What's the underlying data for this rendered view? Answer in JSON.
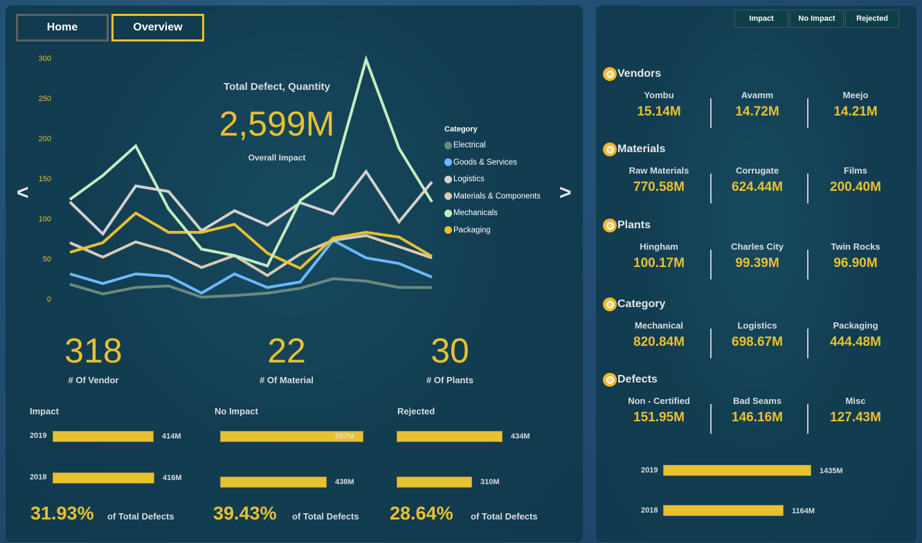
{
  "nav": {
    "home": "Home",
    "overview": "Overview"
  },
  "kpi": {
    "title": "Total Defect, Quantity",
    "value": "2,599M",
    "subtitle": "Overall Impact"
  },
  "chart_data": {
    "type": "line",
    "title": "Total Defect, Quantity by Category",
    "xlabel": "",
    "ylabel": "",
    "yticks": [
      "300",
      "250",
      "200",
      "150",
      "100",
      "50",
      "0"
    ],
    "ylim": [
      0,
      300
    ],
    "grid": false,
    "legend": "right",
    "legend_title": "Category",
    "x": [
      1,
      2,
      3,
      4,
      5,
      6,
      7,
      8,
      9,
      10,
      11,
      12
    ],
    "series": [
      {
        "name": "Electrical",
        "color": "#6b8a7e",
        "values": [
          19,
          7,
          15,
          17,
          3,
          5,
          8,
          14,
          26,
          23,
          15,
          15
        ]
      },
      {
        "name": "Goods & Services",
        "color": "#6db8ff",
        "values": [
          32,
          20,
          32,
          29,
          8,
          32,
          15,
          22,
          74,
          52,
          45,
          28
        ]
      },
      {
        "name": "Logistics",
        "color": "#d4d0d0",
        "values": [
          122,
          82,
          142,
          135,
          86,
          111,
          93,
          121,
          107,
          160,
          97,
          147
        ]
      },
      {
        "name": "Materials & Components",
        "color": "#d9cbb3",
        "values": [
          71,
          53,
          72,
          60,
          40,
          55,
          30,
          57,
          74,
          80,
          66,
          52
        ]
      },
      {
        "name": "Mechanicals",
        "color": "#c4ecbf",
        "values": [
          125,
          155,
          192,
          113,
          63,
          55,
          42,
          124,
          153,
          300,
          189,
          122
        ]
      },
      {
        "name": "Packaging",
        "color": "#e8c130",
        "values": [
          59,
          71,
          108,
          84,
          84,
          94,
          58,
          39,
          77,
          84,
          78,
          54
        ]
      }
    ]
  },
  "arrows": {
    "prev": "<",
    "next": ">"
  },
  "counts": [
    {
      "value": "318",
      "label": "# Of Vendor"
    },
    {
      "value": "22",
      "label": "# Of Material"
    },
    {
      "value": "30",
      "label": "# Of Plants"
    }
  ],
  "bar_groups": [
    {
      "title": "Impact",
      "bars": [
        {
          "year": "2019",
          "label": "414M",
          "value": 414
        },
        {
          "year": "2018",
          "label": "416M",
          "value": 416
        }
      ],
      "pct": "31.93%",
      "pct_label": "of Total Defects"
    },
    {
      "title": "No Impact",
      "bars": [
        {
          "year": "",
          "label": "587M",
          "value": 587
        },
        {
          "year": "",
          "label": "438M",
          "value": 438
        }
      ],
      "pct": "39.43%",
      "pct_label": "of Total Defects"
    },
    {
      "title": "Rejected",
      "bars": [
        {
          "year": "",
          "label": "434M",
          "value": 434
        },
        {
          "year": "",
          "label": "310M",
          "value": 310
        }
      ],
      "pct": "28.64%",
      "pct_label": "of Total Defects"
    }
  ],
  "filters": [
    "Impact",
    "No Impact",
    "Rejected"
  ],
  "sections": [
    {
      "title": "Vendors",
      "items": [
        {
          "name": "Yombu",
          "value": "15.14M"
        },
        {
          "name": "Avamm",
          "value": "14.72M"
        },
        {
          "name": "Meejo",
          "value": "14.21M"
        }
      ]
    },
    {
      "title": "Materials",
      "items": [
        {
          "name": "Raw Materials",
          "value": "770.58M"
        },
        {
          "name": "Corrugate",
          "value": "624.44M"
        },
        {
          "name": "Films",
          "value": "200.40M"
        }
      ]
    },
    {
      "title": "Plants",
      "items": [
        {
          "name": "Hingham",
          "value": "100.17M"
        },
        {
          "name": "Charles City",
          "value": "99.39M"
        },
        {
          "name": "Twin Rocks",
          "value": "96.90M"
        }
      ]
    },
    {
      "title": "Category",
      "items": [
        {
          "name": "Mechanical",
          "value": "820.84M"
        },
        {
          "name": "Logistics",
          "value": "698.67M"
        },
        {
          "name": "Packaging",
          "value": "444.48M"
        }
      ]
    },
    {
      "title": "Defects",
      "items": [
        {
          "name": "Non - Certified",
          "value": "151.95M"
        },
        {
          "name": "Bad Seams",
          "value": "146.16M"
        },
        {
          "name": "Misc",
          "value": "127.43M"
        }
      ]
    }
  ],
  "year_totals": [
    {
      "year": "2019",
      "label": "1435M",
      "value": 1435
    },
    {
      "year": "2018",
      "label": "1164M",
      "value": 1164
    }
  ]
}
